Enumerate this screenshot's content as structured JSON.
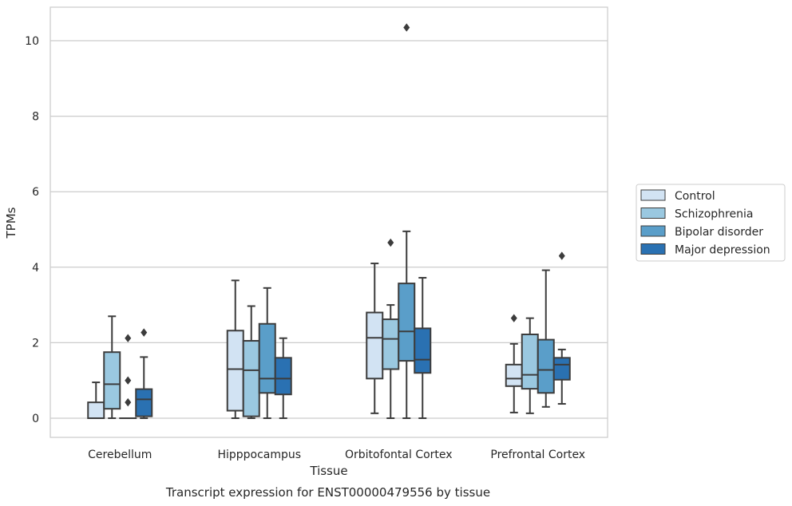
{
  "chart_data": {
    "type": "box",
    "title": "Transcript expression for ENST00000479556 by tissue",
    "xlabel": "Tissue",
    "ylabel": "TPMs",
    "ylim": [
      -0.5,
      10.85
    ],
    "yticks": [
      0,
      2,
      4,
      6,
      8,
      10
    ],
    "grid": "horizontal",
    "legend_position": "right",
    "categories": [
      "Cerebellum",
      "Hipppocampus",
      "Orbitofontal Cortex",
      "Prefrontal Cortex"
    ],
    "series": [
      {
        "name": "Control",
        "color": "#d2e3f3",
        "boxes": [
          {
            "whislo": 0,
            "q1": 0,
            "med": 0,
            "q3": 0.42,
            "whishi": 0.95,
            "fliers": []
          },
          {
            "whislo": 0,
            "q1": 0.2,
            "med": 1.3,
            "q3": 2.32,
            "whishi": 3.65,
            "fliers": []
          },
          {
            "whislo": 0.13,
            "q1": 1.05,
            "med": 2.13,
            "q3": 2.8,
            "whishi": 4.1,
            "fliers": []
          },
          {
            "whislo": 0.15,
            "q1": 0.85,
            "med": 1.05,
            "q3": 1.42,
            "whishi": 1.97,
            "fliers": [
              2.65
            ]
          }
        ]
      },
      {
        "name": "Schizophrenia",
        "color": "#9ac8e0",
        "boxes": [
          {
            "whislo": 0,
            "q1": 0.25,
            "med": 0.9,
            "q3": 1.75,
            "whishi": 2.7,
            "fliers": []
          },
          {
            "whislo": 0,
            "q1": 0.05,
            "med": 1.27,
            "q3": 2.05,
            "whishi": 2.97,
            "fliers": []
          },
          {
            "whislo": 0,
            "q1": 1.3,
            "med": 2.1,
            "q3": 2.62,
            "whishi": 3.0,
            "fliers": [
              4.65
            ]
          },
          {
            "whislo": 0.13,
            "q1": 0.78,
            "med": 1.15,
            "q3": 2.22,
            "whishi": 2.65,
            "fliers": []
          }
        ]
      },
      {
        "name": "Bipolar disorder",
        "color": "#5a9ec9",
        "boxes": [
          {
            "whislo": 0,
            "q1": 0,
            "med": 0,
            "q3": 0,
            "whishi": 0,
            "fliers": [
              0.42,
              1.0,
              2.12
            ]
          },
          {
            "whislo": 0,
            "q1": 0.67,
            "med": 1.05,
            "q3": 2.5,
            "whishi": 3.45,
            "fliers": []
          },
          {
            "whislo": 0,
            "q1": 1.52,
            "med": 2.3,
            "q3": 3.57,
            "whishi": 4.95,
            "fliers": [
              10.35
            ]
          },
          {
            "whislo": 0.3,
            "q1": 0.67,
            "med": 1.28,
            "q3": 2.08,
            "whishi": 3.92,
            "fliers": []
          }
        ]
      },
      {
        "name": "Major depression",
        "color": "#2a71b2",
        "boxes": [
          {
            "whislo": 0,
            "q1": 0.05,
            "med": 0.5,
            "q3": 0.77,
            "whishi": 1.62,
            "fliers": [
              2.27
            ]
          },
          {
            "whislo": 0,
            "q1": 0.63,
            "med": 1.05,
            "q3": 1.6,
            "whishi": 2.12,
            "fliers": []
          },
          {
            "whislo": 0,
            "q1": 1.2,
            "med": 1.55,
            "q3": 2.38,
            "whishi": 3.72,
            "fliers": []
          },
          {
            "whislo": 0.38,
            "q1": 1.02,
            "med": 1.42,
            "q3": 1.6,
            "whishi": 1.82,
            "fliers": [
              4.3
            ]
          }
        ]
      }
    ]
  }
}
